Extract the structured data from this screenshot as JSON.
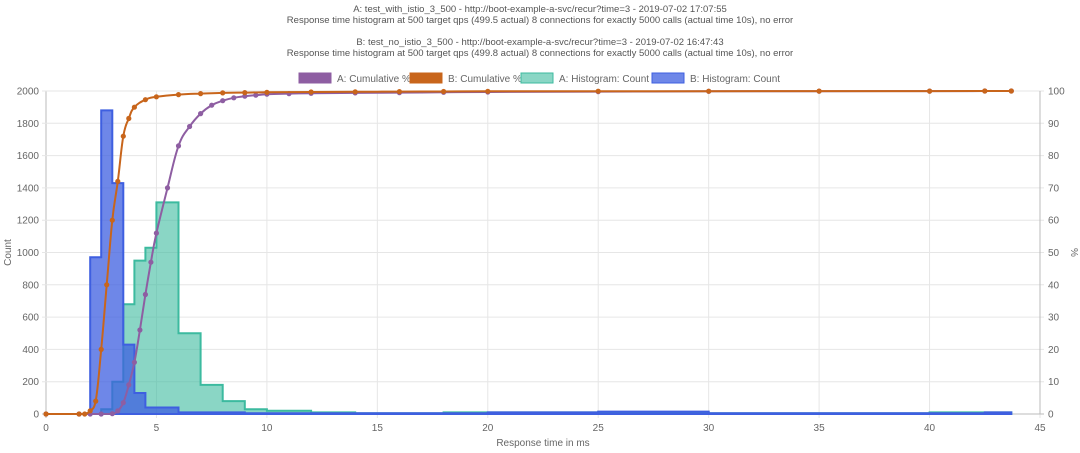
{
  "chart_data": {
    "type": "line",
    "title": [
      "A: test_with_istio_3_500 - http://boot-example-a-svc/recur?time=3 - 2019-07-02 17:07:55",
      "Response time histogram at 500 target qps (499.5 actual) 8 connections for exactly 5000 calls (actual time 10s), no error",
      "",
      "B: test_no_istio_3_500 - http://boot-example-a-svc/recur?time=3 - 2019-07-02 16:47:43",
      "Response time histogram at 500 target qps (499.8 actual) 8 connections for exactly 5000 calls (actual time 10s), no error"
    ],
    "xlabel": "Response time in ms",
    "ylabel_left": "Count",
    "ylabel_right": "%",
    "xlim": [
      0,
      45
    ],
    "ylim_left": [
      0,
      2000
    ],
    "ylim_right": [
      0,
      100
    ],
    "x_ticks": [
      "0",
      "5",
      "10",
      "15",
      "20",
      "25",
      "30",
      "35",
      "40",
      "45"
    ],
    "y_left_ticks": [
      "0",
      "200",
      "400",
      "600",
      "800",
      "1000",
      "1200",
      "1400",
      "1600",
      "1800",
      "2000"
    ],
    "y_right_ticks": [
      "0",
      "10",
      "20",
      "30",
      "40",
      "50",
      "60",
      "70",
      "80",
      "90",
      "100"
    ],
    "grid": true,
    "legend_position": "top",
    "series": [
      {
        "name": "A: Cumulative %",
        "kind": "line",
        "axis": "right",
        "color": "#8e5ea2",
        "points": [
          [
            0,
            0
          ],
          [
            1.5,
            0
          ],
          [
            2,
            0
          ],
          [
            2.5,
            0
          ],
          [
            3,
            0.1
          ],
          [
            3.25,
            1
          ],
          [
            3.5,
            3.5
          ],
          [
            3.75,
            9
          ],
          [
            4,
            16
          ],
          [
            4.25,
            26
          ],
          [
            4.5,
            37
          ],
          [
            4.75,
            47
          ],
          [
            5,
            56
          ],
          [
            5.5,
            70
          ],
          [
            6,
            83
          ],
          [
            6.5,
            89
          ],
          [
            7,
            93
          ],
          [
            7.5,
            95.6
          ],
          [
            8,
            97
          ],
          [
            8.5,
            97.9
          ],
          [
            9,
            98.4
          ],
          [
            9.5,
            98.7
          ],
          [
            10,
            99
          ],
          [
            11,
            99.2
          ],
          [
            12,
            99.3
          ],
          [
            14,
            99.4
          ],
          [
            16,
            99.5
          ],
          [
            18,
            99.6
          ],
          [
            20,
            99.7
          ],
          [
            25,
            99.8
          ],
          [
            30,
            99.9
          ],
          [
            35,
            99.95
          ],
          [
            40,
            99.97
          ],
          [
            42.5,
            99.99
          ],
          [
            43.7,
            100
          ]
        ]
      },
      {
        "name": "B: Cumulative %",
        "kind": "line",
        "axis": "right",
        "color": "#c8651b",
        "points": [
          [
            0,
            0
          ],
          [
            1.5,
            0
          ],
          [
            1.75,
            0
          ],
          [
            2,
            1
          ],
          [
            2.25,
            4
          ],
          [
            2.5,
            20
          ],
          [
            2.75,
            40
          ],
          [
            3,
            60
          ],
          [
            3.25,
            72
          ],
          [
            3.5,
            86
          ],
          [
            3.75,
            91.5
          ],
          [
            4,
            95
          ],
          [
            4.5,
            97.3
          ],
          [
            5,
            98.2
          ],
          [
            6,
            98.9
          ],
          [
            7,
            99.2
          ],
          [
            8,
            99.4
          ],
          [
            9,
            99.5
          ],
          [
            10,
            99.6
          ],
          [
            12,
            99.7
          ],
          [
            14,
            99.75
          ],
          [
            16,
            99.8
          ],
          [
            18,
            99.85
          ],
          [
            20,
            99.9
          ],
          [
            25,
            99.93
          ],
          [
            30,
            99.95
          ],
          [
            35,
            99.97
          ],
          [
            40,
            99.98
          ],
          [
            42.5,
            99.99
          ],
          [
            43.7,
            100
          ]
        ]
      },
      {
        "name": "A: Histogram: Count",
        "kind": "histogram",
        "axis": "left",
        "color": "#3cba9f",
        "bins": [
          [
            2.5,
            3,
            30
          ],
          [
            3,
            3.5,
            200
          ],
          [
            3.5,
            4,
            680
          ],
          [
            4,
            4.5,
            950
          ],
          [
            4.5,
            5,
            1030
          ],
          [
            5,
            6,
            1310
          ],
          [
            6,
            7,
            500
          ],
          [
            7,
            8,
            180
          ],
          [
            8,
            9,
            80
          ],
          [
            9,
            10,
            30
          ],
          [
            10,
            12,
            20
          ],
          [
            12,
            14,
            10
          ],
          [
            14,
            16,
            5
          ],
          [
            16,
            18,
            5
          ],
          [
            18,
            20,
            10
          ],
          [
            20,
            25,
            10
          ],
          [
            25,
            30,
            8
          ],
          [
            30,
            35,
            5
          ],
          [
            35,
            40,
            5
          ],
          [
            40,
            43.7,
            10
          ]
        ]
      },
      {
        "name": "B: Histogram: Count",
        "kind": "histogram",
        "axis": "left",
        "color": "#3e5fe0",
        "bins": [
          [
            2,
            2.5,
            970
          ],
          [
            2.5,
            3,
            1880
          ],
          [
            3,
            3.5,
            1430
          ],
          [
            3.5,
            4,
            430
          ],
          [
            4,
            4.5,
            130
          ],
          [
            4.5,
            5,
            40
          ],
          [
            5,
            6,
            40
          ],
          [
            6,
            7,
            10
          ],
          [
            7,
            8,
            10
          ],
          [
            8,
            9,
            10
          ],
          [
            9,
            10,
            5
          ],
          [
            10,
            12,
            5
          ],
          [
            12,
            14,
            5
          ],
          [
            14,
            16,
            5
          ],
          [
            16,
            18,
            5
          ],
          [
            18,
            20,
            5
          ],
          [
            20,
            25,
            10
          ],
          [
            25,
            30,
            15
          ],
          [
            30,
            35,
            5
          ],
          [
            35,
            40,
            5
          ],
          [
            40,
            42.5,
            5
          ],
          [
            42.5,
            43.7,
            10
          ]
        ]
      }
    ]
  }
}
